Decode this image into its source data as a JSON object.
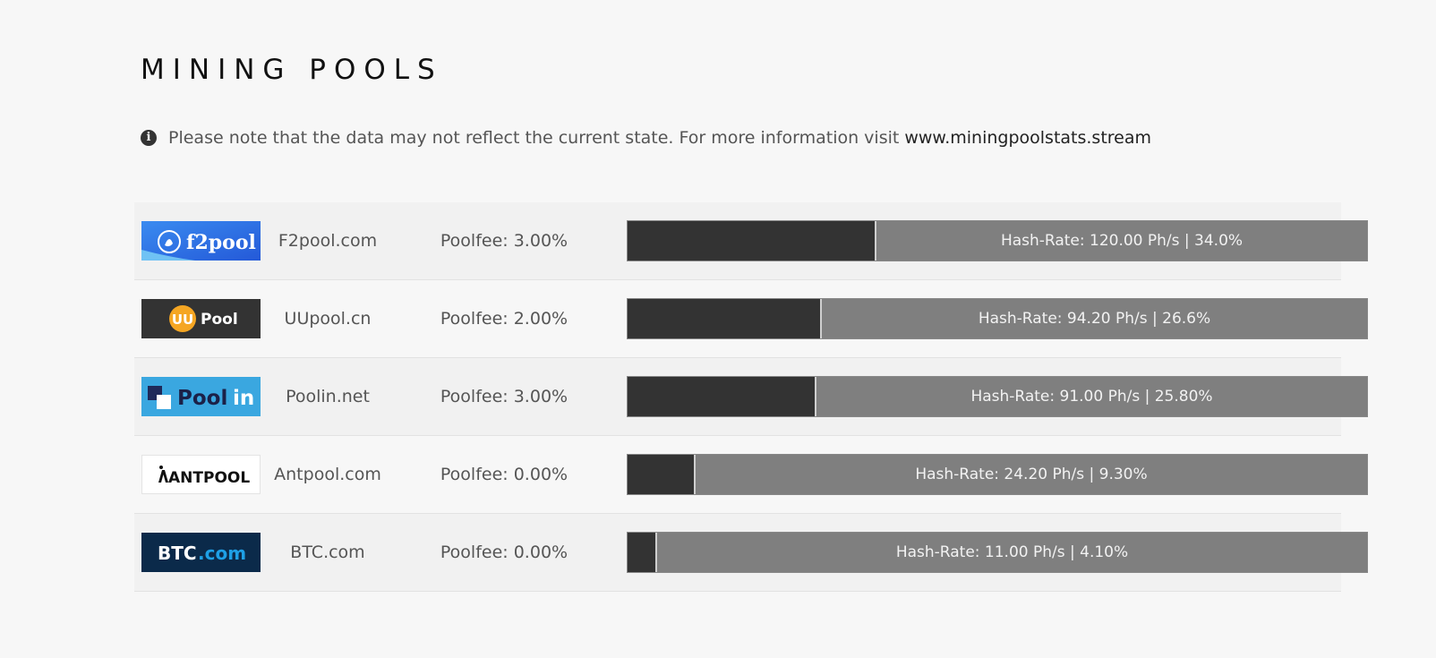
{
  "header": {
    "title": "MINING POOLS"
  },
  "notice": {
    "icon": "info-icon",
    "text": "Please note that the data may not reflect the current state. For more information visit",
    "link_text": "www.miningpoolstats.stream"
  },
  "pools": [
    {
      "logo_text": "f2pool",
      "domain": "F2pool.com",
      "fee": "Poolfee: 3.00%",
      "hashrate_label": "Hash-Rate: 120.00 Ph/s | 34.0%",
      "share_percent": 34.0
    },
    {
      "logo_text_1": "UU",
      "logo_text_2": "Pool",
      "domain": "UUpool.cn",
      "fee": "Poolfee: 2.00%",
      "hashrate_label": "Hash-Rate: 94.20 Ph/s | 26.6%",
      "share_percent": 26.6
    },
    {
      "logo_text_1": "Pool",
      "logo_text_2": "in",
      "domain": "Poolin.net",
      "fee": "Poolfee: 3.00%",
      "hashrate_label": "Hash-Rate: 91.00 Ph/s | 25.80%",
      "share_percent": 25.8
    },
    {
      "logo_text": "ANTPOOL",
      "domain": "Antpool.com",
      "fee": "Poolfee: 0.00%",
      "hashrate_label": "Hash-Rate: 24.20 Ph/s | 9.30%",
      "share_percent": 9.3
    },
    {
      "logo_text_1": "BTC",
      "logo_text_2": ".com",
      "domain": "BTC.com",
      "fee": "Poolfee: 0.00%",
      "hashrate_label": "Hash-Rate: 11.00 Ph/s | 4.10%",
      "share_percent": 4.1
    }
  ],
  "colors": {
    "bar_fill": "#333333",
    "bar_track": "#7f7f7f",
    "f2pool_blue": "#2f6fe6",
    "uupool_dark": "#333333",
    "uupool_orange": "#f5a623",
    "poolin_blue": "#3aa7e0",
    "btc_navy": "#0b2a4a",
    "btc_cyan": "#1ea0e6"
  }
}
